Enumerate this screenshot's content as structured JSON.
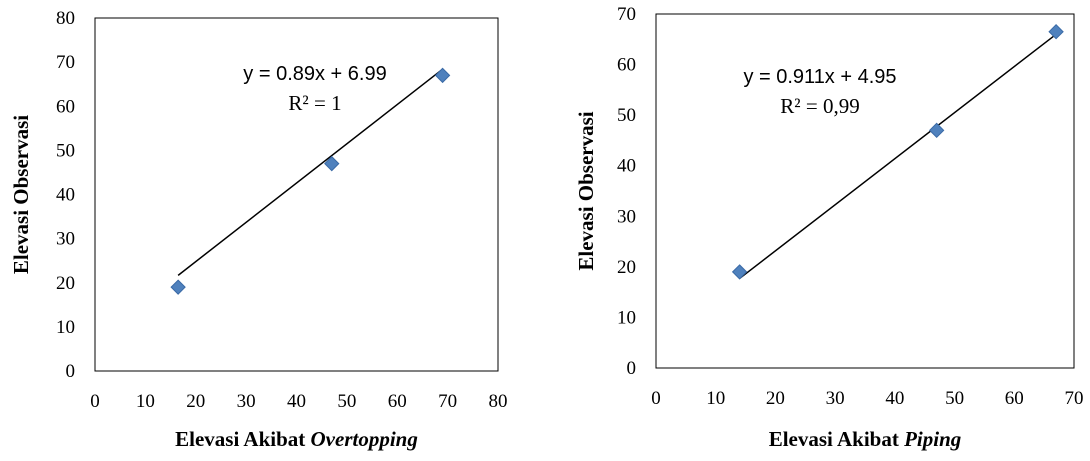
{
  "chart_data": [
    {
      "type": "scatter",
      "title": "",
      "xlabel": "Elevasi Akibat ",
      "xlabel_italic": "Overtopping",
      "ylabel": "Elevasi Observasi",
      "xlim": [
        0,
        80
      ],
      "ylim": [
        0,
        80
      ],
      "x_ticks": [
        "0",
        "10",
        "20",
        "30",
        "40",
        "50",
        "60",
        "70",
        "80"
      ],
      "y_ticks": [
        "0",
        "10",
        "20",
        "30",
        "40",
        "50",
        "60",
        "70",
        "80"
      ],
      "points": [
        {
          "x": 16.5,
          "y": 19
        },
        {
          "x": 47,
          "y": 47
        },
        {
          "x": 69,
          "y": 67
        }
      ],
      "trendline": {
        "slope": 0.89,
        "intercept": 6.99
      },
      "equation": "y = 0.89x + 6.99",
      "r2": "R² = 1",
      "grid": false,
      "marker_color": "#4F81BD",
      "line_color": "#000000"
    },
    {
      "type": "scatter",
      "title": "",
      "xlabel": "Elevasi Akibat ",
      "xlabel_italic": "Piping",
      "ylabel": "Elevasi Observasi",
      "xlim": [
        0,
        70
      ],
      "ylim": [
        0,
        70
      ],
      "x_ticks": [
        "0",
        "10",
        "20",
        "30",
        "40",
        "50",
        "60",
        "70"
      ],
      "y_ticks": [
        "0",
        "10",
        "20",
        "30",
        "40",
        "50",
        "60",
        "70"
      ],
      "points": [
        {
          "x": 14,
          "y": 19
        },
        {
          "x": 47,
          "y": 47
        },
        {
          "x": 67,
          "y": 66.5
        }
      ],
      "trendline": {
        "slope": 0.911,
        "intercept": 4.95
      },
      "equation": "y = 0.911x + 4.95",
      "r2": "R² = 0,99",
      "grid": false,
      "marker_color": "#4F81BD",
      "line_color": "#000000"
    }
  ]
}
